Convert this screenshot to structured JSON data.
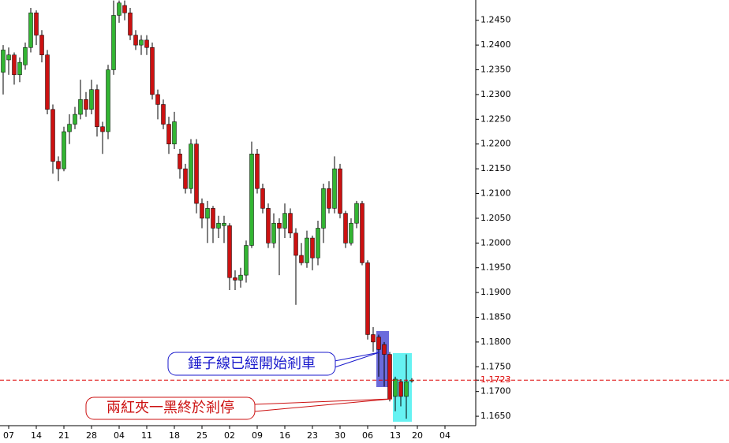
{
  "chart_data": {
    "type": "candlestick",
    "up_color": "#33b533",
    "down_color": "#cc1111",
    "categories": [
      null,
      "07",
      null,
      null,
      null,
      null,
      "14",
      null,
      null,
      null,
      null,
      "21",
      null,
      null,
      null,
      null,
      "28",
      null,
      null,
      null,
      null,
      "04",
      null,
      null,
      null,
      null,
      "11",
      null,
      null,
      null,
      null,
      "18",
      null,
      null,
      null,
      null,
      "25",
      null,
      null,
      null,
      null,
      "02",
      null,
      null,
      null,
      null,
      "09",
      null,
      null,
      null,
      null,
      "16",
      null,
      null,
      null,
      null,
      "23",
      null,
      null,
      null,
      null,
      "30",
      null,
      null,
      null,
      null,
      "06",
      null,
      null,
      null,
      null,
      "13",
      null,
      null,
      null,
      "20",
      null,
      null,
      null,
      null,
      "04"
    ],
    "open": [
      1.2345,
      1.237,
      1.238,
      1.234,
      1.236,
      1.2395,
      1.2465,
      1.242,
      1.238,
      1.227,
      1.2165,
      1.215,
      1.2225,
      1.224,
      1.226,
      1.229,
      1.227,
      1.231,
      1.2235,
      1.2225,
      1.235,
      1.246,
      1.248,
      1.2465,
      1.242,
      1.24,
      1.241,
      1.2395,
      1.23,
      1.228,
      1.224,
      1.22,
      1.218,
      1.215,
      1.211,
      1.22,
      1.208,
      1.205,
      1.207,
      1.203,
      1.2035,
      1.2035,
      1.193,
      1.1925,
      1.1935,
      1.1995,
      1.218,
      1.211,
      1.207,
      1.2,
      1.204,
      1.203,
      1.206,
      1.202,
      1.1975,
      1.196,
      1.201,
      1.197,
      1.203,
      1.211,
      1.207,
      1.215,
      1.206,
      1.2,
      1.204,
      1.208,
      1.196,
      1.1815,
      1.181,
      1.1795,
      1.1775,
      1.169,
      1.172,
      1.169,
      1.1722,
      null,
      null,
      null,
      null,
      null,
      null
    ],
    "high": [
      1.24,
      1.2395,
      1.2385,
      1.2375,
      1.2405,
      1.2475,
      1.247,
      1.243,
      1.239,
      1.228,
      1.2175,
      1.2235,
      1.226,
      1.2275,
      1.233,
      1.2305,
      1.233,
      1.232,
      1.2245,
      1.236,
      1.249,
      1.249,
      1.249,
      1.2475,
      1.243,
      1.242,
      1.242,
      1.2405,
      1.231,
      1.229,
      1.2255,
      1.2265,
      1.219,
      1.216,
      1.221,
      1.221,
      1.209,
      1.2085,
      1.2075,
      1.2055,
      1.2055,
      1.204,
      1.1945,
      1.195,
      1.2005,
      1.2205,
      1.219,
      1.212,
      1.208,
      1.206,
      1.205,
      1.208,
      1.207,
      1.203,
      1.2,
      1.2025,
      1.2015,
      1.2045,
      1.212,
      1.2125,
      1.2175,
      1.216,
      1.2065,
      1.205,
      1.2085,
      1.2085,
      1.1965,
      1.183,
      1.1815,
      1.18,
      1.178,
      1.173,
      1.1725,
      1.1775,
      1.1727,
      null,
      null,
      null,
      null,
      null,
      null
    ],
    "low": [
      1.23,
      1.234,
      1.232,
      1.2325,
      1.235,
      1.2385,
      1.24,
      1.2365,
      1.226,
      1.214,
      1.2125,
      1.2145,
      1.22,
      1.223,
      1.225,
      1.2255,
      1.226,
      1.2215,
      1.218,
      1.221,
      1.234,
      1.2445,
      1.245,
      1.241,
      1.239,
      1.238,
      1.238,
      1.229,
      1.225,
      1.223,
      1.218,
      1.219,
      1.213,
      1.21,
      1.21,
      1.206,
      1.203,
      1.2,
      1.2,
      1.201,
      1.2,
      1.1905,
      1.1905,
      1.191,
      1.192,
      1.199,
      1.21,
      1.206,
      1.199,
      1.199,
      1.1935,
      1.201,
      1.201,
      1.1875,
      1.1955,
      1.195,
      1.1945,
      1.1955,
      1.2,
      1.206,
      1.206,
      1.205,
      1.199,
      1.1995,
      1.203,
      1.1955,
      1.1805,
      1.178,
      1.173,
      1.171,
      1.168,
      1.166,
      1.167,
      1.1645,
      1.1718,
      null,
      null,
      null,
      null,
      null,
      null
    ],
    "close": [
      1.239,
      1.238,
      1.234,
      1.2365,
      1.2395,
      1.2465,
      1.242,
      1.238,
      1.227,
      1.2165,
      1.215,
      1.2225,
      1.224,
      1.226,
      1.229,
      1.227,
      1.231,
      1.2235,
      1.2225,
      1.235,
      1.246,
      1.2485,
      1.2465,
      1.242,
      1.24,
      1.241,
      1.2395,
      1.23,
      1.228,
      1.224,
      1.22,
      1.2245,
      1.215,
      1.211,
      1.22,
      1.208,
      1.205,
      1.207,
      1.203,
      1.204,
      1.204,
      1.193,
      1.1925,
      1.1935,
      1.1995,
      1.218,
      1.211,
      1.207,
      1.2,
      1.204,
      1.203,
      1.206,
      1.202,
      1.1975,
      1.196,
      1.201,
      1.197,
      1.203,
      1.211,
      1.207,
      1.215,
      1.206,
      1.2,
      1.204,
      1.208,
      1.196,
      1.1815,
      1.18,
      1.1785,
      1.1775,
      1.1685,
      1.1725,
      1.169,
      1.172,
      1.1723,
      null,
      null,
      null,
      null,
      null,
      null
    ],
    "ylim": [
      1.1631,
      1.2491
    ],
    "yticks": [
      {
        "value": 1.165,
        "label": "1.1650"
      },
      {
        "value": 1.17,
        "label": "1.1700"
      },
      1.1723,
      {
        "value": 1.175,
        "label": "1.1750"
      },
      {
        "value": 1.18,
        "label": "1.1800"
      },
      {
        "value": 1.185,
        "label": "1.1850"
      },
      {
        "value": 1.19,
        "label": "1.1900"
      },
      {
        "value": 1.195,
        "label": "1.1950"
      },
      {
        "value": 1.2,
        "label": "1.2000"
      },
      {
        "value": 1.205,
        "label": "1.2050"
      },
      {
        "value": 1.21,
        "label": "1.2100"
      },
      {
        "value": 1.215,
        "label": "1.2150"
      },
      {
        "value": 1.22,
        "label": "1.2200"
      },
      {
        "value": 1.225,
        "label": "1.2250"
      },
      {
        "value": 1.23,
        "label": "1.2300"
      },
      {
        "value": 1.235,
        "label": "1.2350"
      },
      {
        "value": 1.24,
        "label": "1.2400"
      },
      {
        "value": 1.245,
        "label": "1.2450"
      }
    ],
    "last_price": 1.1723,
    "last_price_color": "#dd0000",
    "annotations": [
      "錘子線已經開始剎車",
      "兩紅夾一黑終於剎停"
    ]
  }
}
